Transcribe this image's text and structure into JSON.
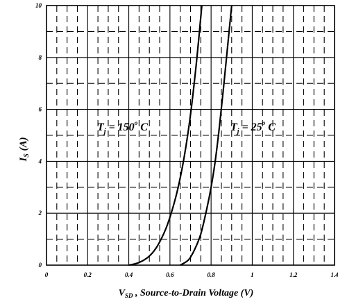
{
  "chart_data": {
    "type": "line",
    "xlabel": {
      "symbol": "V",
      "subscript": "SD",
      "text": " , Source-to-Drain Voltage (V)"
    },
    "ylabel": {
      "symbol": "I",
      "subscript": "S",
      "text": " (A)"
    },
    "xlim": [
      0,
      1.4
    ],
    "ylim": [
      0,
      10
    ],
    "x_ticks": [
      0,
      0.2,
      0.4,
      0.6,
      0.8,
      1,
      1.2,
      1.4
    ],
    "x_tick_labels": [
      "0",
      "0.2",
      "0.4",
      "0.6",
      "0.8",
      "1",
      "1.2",
      "1.4"
    ],
    "y_ticks": [
      0,
      2,
      4,
      6,
      8,
      10
    ],
    "y_tick_labels": [
      "0",
      "2",
      "4",
      "6",
      "8",
      "10"
    ],
    "grid": {
      "major": "solid",
      "minor": "dashed",
      "x_minor_step": 0.05,
      "y_minor_step": 1
    },
    "series": [
      {
        "annotation": {
          "main": "T",
          "sub": "j",
          "rest": " = 150",
          "deg": "o",
          "unit": " C"
        },
        "x": [
          0.4,
          0.45,
          0.5,
          0.54,
          0.58,
          0.61,
          0.64,
          0.67,
          0.7,
          0.73,
          0.755
        ],
        "y": [
          0.0,
          0.1,
          0.35,
          0.75,
          1.4,
          2.1,
          3.0,
          4.2,
          5.8,
          7.9,
          10.0
        ]
      },
      {
        "annotation": {
          "main": "T",
          "sub": "j",
          "rest": " = 25",
          "deg": "o",
          "unit": " C"
        },
        "x": [
          0.65,
          0.69,
          0.72,
          0.75,
          0.78,
          0.8,
          0.82,
          0.84,
          0.86,
          0.88,
          0.9
        ],
        "y": [
          0.0,
          0.2,
          0.6,
          1.2,
          2.2,
          3.0,
          4.0,
          5.3,
          6.8,
          8.4,
          10.0
        ]
      }
    ]
  }
}
